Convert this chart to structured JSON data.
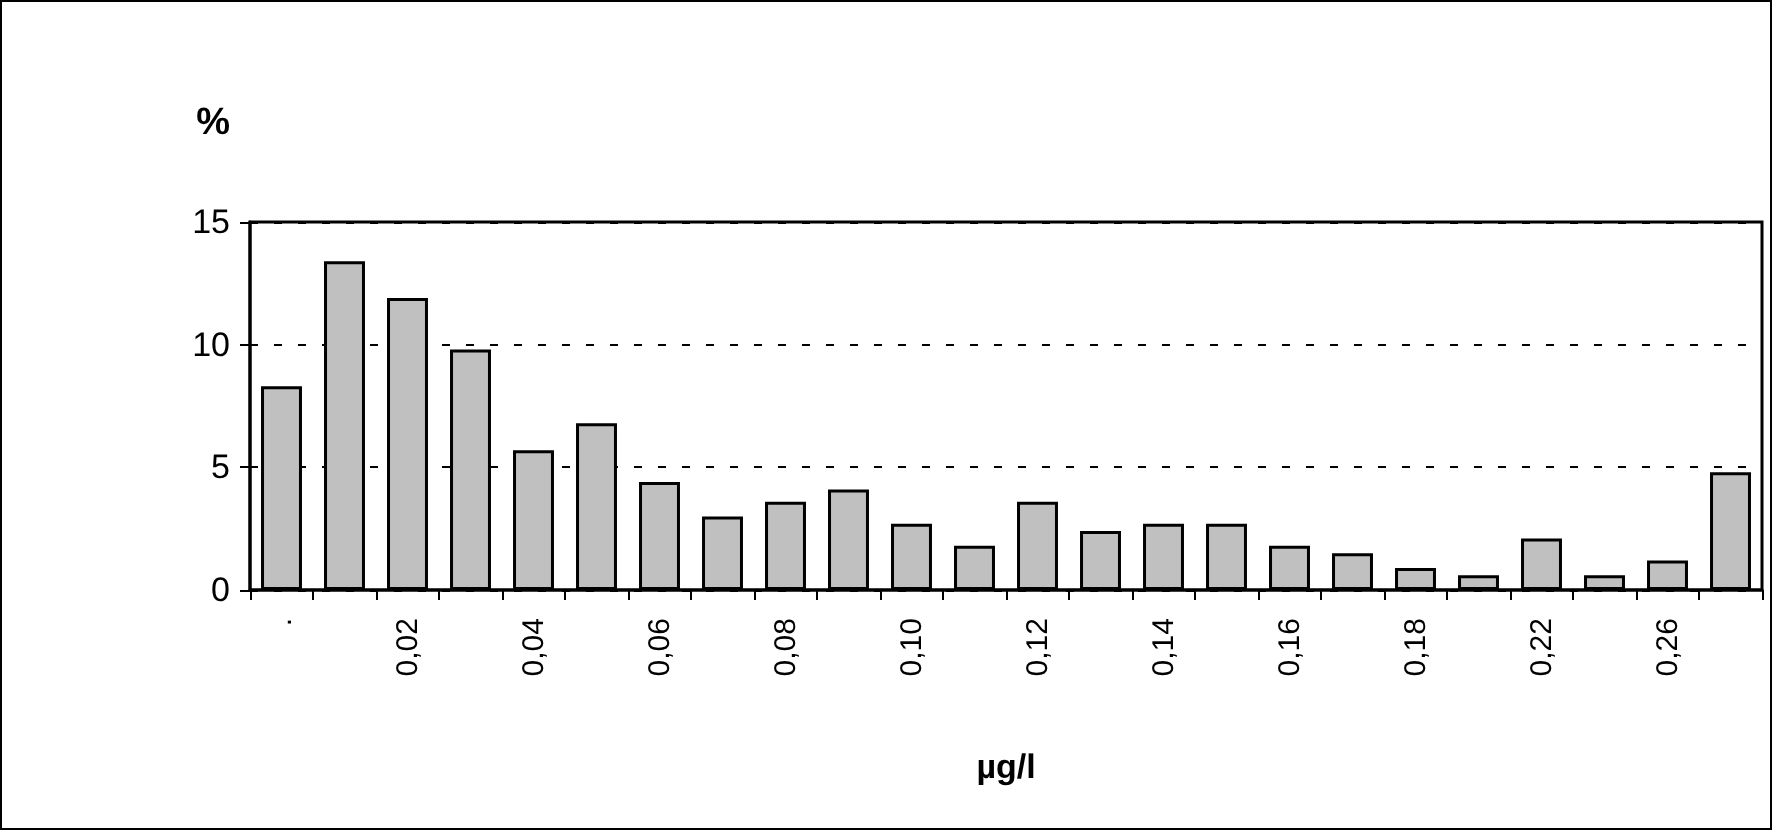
{
  "chart_data": {
    "type": "bar",
    "categories": [
      ".",
      null,
      "0,02",
      null,
      "0,04",
      null,
      "0,06",
      null,
      "0,08",
      null,
      "0,10",
      null,
      "0,12",
      null,
      "0,14",
      null,
      "0,16",
      null,
      "0,18",
      null,
      "0,22",
      null,
      "0,26",
      null
    ],
    "values": [
      8.3,
      13.4,
      11.9,
      9.8,
      5.7,
      6.8,
      4.4,
      3.0,
      3.6,
      4.1,
      2.7,
      1.8,
      3.6,
      2.4,
      2.7,
      2.7,
      1.8,
      1.5,
      0.9,
      0.6,
      2.1,
      0.6,
      1.2,
      4.8
    ],
    "color": "#c0c0c0",
    "ylabel": "%",
    "xlabel": "µg/l",
    "ylim": [
      0,
      15
    ],
    "yticks": [
      0,
      5,
      10,
      15
    ],
    "grid": "y"
  }
}
